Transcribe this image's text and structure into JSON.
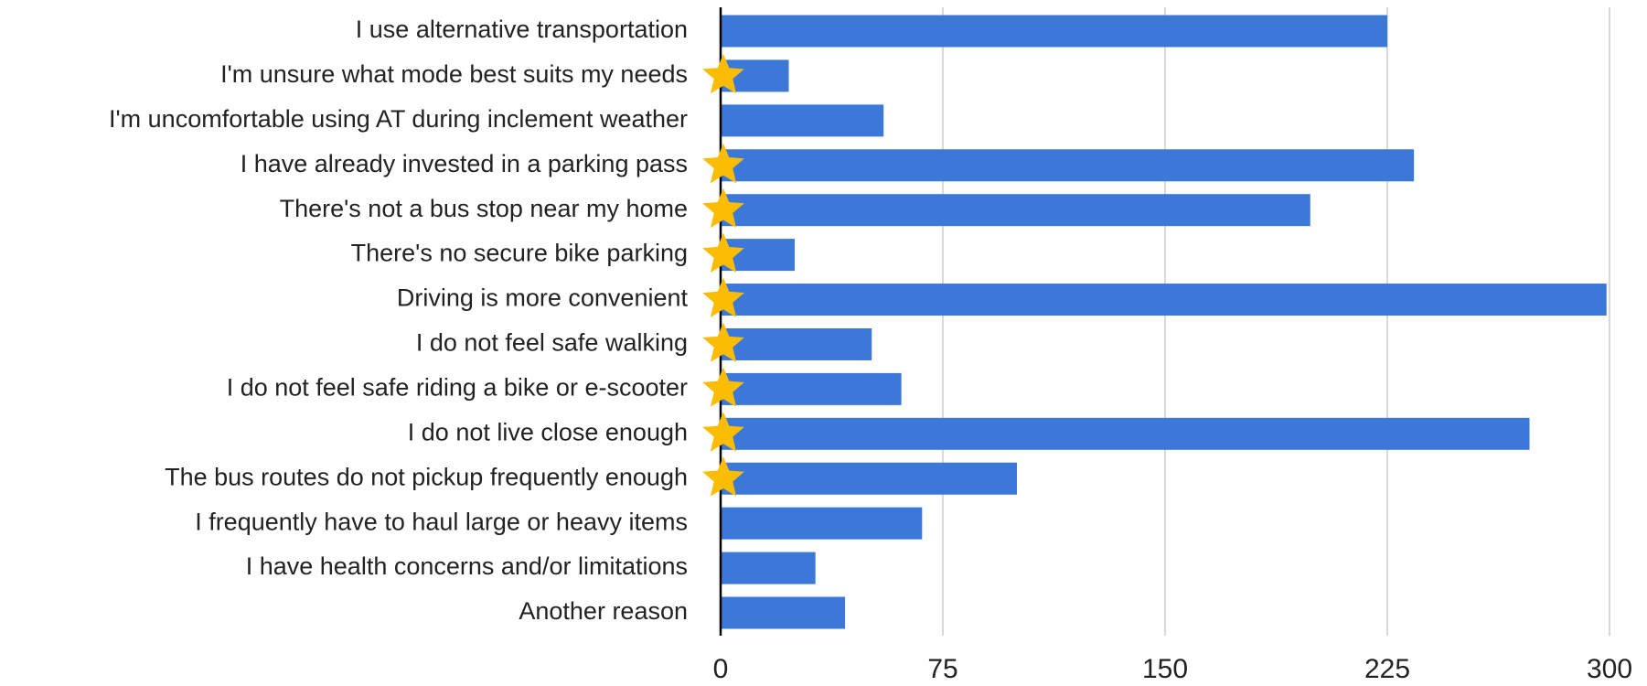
{
  "chart_data": {
    "type": "barh",
    "categories": [
      "I use alternative transportation",
      "I'm unsure what mode best suits my needs",
      "I'm uncomfortable using AT during inclement weather",
      "I have already invested in a parking pass",
      "There's not a bus stop near my home",
      "There's no secure bike parking",
      "Driving is more convenient",
      "I do not feel safe walking",
      "I do not feel safe riding a bike or e-scooter",
      "I do not live close enough",
      "The bus routes do not pickup frequently enough",
      "I frequently have to haul large or heavy items",
      "I have health concerns and/or limitations",
      "Another reason"
    ],
    "values": [
      225,
      23,
      55,
      234,
      199,
      25,
      299,
      51,
      61,
      273,
      100,
      68,
      32,
      42
    ],
    "starred": [
      false,
      true,
      false,
      true,
      true,
      true,
      true,
      true,
      true,
      true,
      true,
      false,
      false,
      false
    ],
    "color": "#3c78d8",
    "star_color": "#fbbc04",
    "xlim": [
      0,
      300
    ],
    "xticks": [
      0,
      75,
      150,
      225,
      300
    ],
    "grid": true
  }
}
